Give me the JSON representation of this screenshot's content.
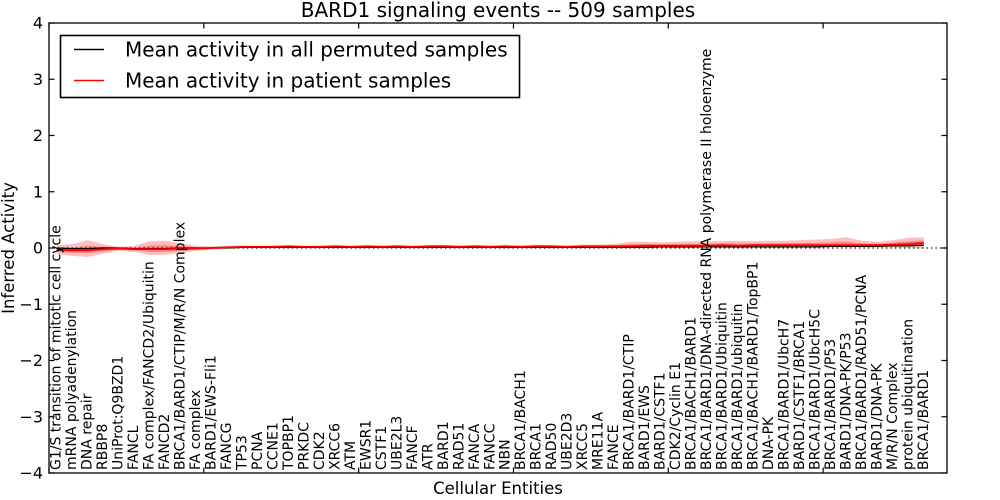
{
  "figure": {
    "title": "BARD1 signaling events -- 509 samples",
    "xlabel": "Cellular Entities",
    "ylabel": "Inferred Activity"
  },
  "legend": {
    "items": [
      {
        "label": "Mean activity in all permuted samples",
        "color": "#000000"
      },
      {
        "label": "Mean activity in patient samples",
        "color": "#ff0000"
      }
    ]
  },
  "chart_data": {
    "type": "line",
    "title": "BARD1 signaling events -- 509 samples",
    "xlabel": "Cellular Entities",
    "ylabel": "Inferred Activity",
    "ylim": [
      -4,
      4
    ],
    "yticks": [
      -4,
      -3,
      -2,
      -1,
      0,
      1,
      2,
      3,
      4
    ],
    "xlim": [
      0,
      58
    ],
    "x_major_tick_units": [
      0,
      10,
      20,
      30,
      40,
      50
    ],
    "grid": false,
    "legend_position": "upper left",
    "zero_line": {
      "y": 0,
      "style": "dotted",
      "color": "#000000"
    },
    "band_color": "#ff0000",
    "band_opacity": 0.25,
    "categories": [
      "G1/S transition of mitotic cell cycle",
      "mRNA polyadenylation",
      "DNA repair",
      "RBBP8",
      "UniProt:Q9BZD1",
      "FANCL",
      "FA complex/FANCD2/Ubiquitin",
      "FANCD2",
      "BRCA1/BARD1/CTIP/M/R/N Complex",
      "FA complex",
      "BARD1/EWS-Fli1",
      "FANCG",
      "TP53",
      "PCNA",
      "CCNE1",
      "TOPBP1",
      "PRKDC",
      "CDK2",
      "XRCC6",
      "ATM",
      "EWSR1",
      "CSTF1",
      "UBE2L3",
      "FANCF",
      "ATR",
      "BARD1",
      "RAD51",
      "FANCA",
      "FANCC",
      "NBN",
      "BRCA1/BACH1",
      "BRCA1",
      "RAD50",
      "UBE2D3",
      "XRCC5",
      "MRE11A",
      "FANCE",
      "BRCA1/BARD1/CTIP",
      "BARD1/EWS",
      "BARD1/CSTF1",
      "CDK2/Cyclin E1",
      "BRCA1/BACH1/BARD1",
      "BRCA1/BARD1/DNA-directed RNA polymerase II holoenzyme",
      "BRCA1/BARD1/Ubiquitin",
      "BRCA1/BARD1/ubiquitin",
      "BRCA1/BACH1/BARD1/TopBP1",
      "DNA-PK",
      "BRCA1/BARD1/UbcH7",
      "BARD1/CSTF1/BRCA1",
      "BRCA1/BARD1/UbcH5C",
      "BRCA1/BARD1/P53",
      "BARD1/DNA-PK/P53",
      "BRCA1/BARD1/RAD51/PCNA",
      "BARD1/DNA-PK",
      "M/R/N Complex",
      "protein ubiquitination",
      "BRCA1/BARD1"
    ],
    "series": [
      {
        "name": "Mean activity in all permuted samples",
        "type": "line",
        "color": "#000000",
        "values": [
          0,
          -0.01,
          -0.01,
          0,
          0,
          -0.01,
          -0.01,
          -0.01,
          0,
          0,
          0,
          0,
          0.01,
          0.01,
          0.01,
          0.01,
          0.01,
          0.01,
          0.01,
          0.01,
          0.01,
          0.01,
          0.01,
          0.01,
          0.01,
          0.01,
          0.01,
          0.01,
          0.01,
          0.01,
          0.01,
          0.01,
          0.01,
          0.01,
          0.01,
          0.01,
          0.01,
          0.01,
          0.01,
          0.02,
          0.02,
          0.02,
          0.02,
          0.02,
          0.02,
          0.02,
          0.02,
          0.02,
          0.02,
          0.02,
          0.03,
          0.03,
          0.03,
          0.03,
          0.04,
          0.04,
          0.05
        ]
      },
      {
        "name": "Mean activity in patient samples",
        "type": "line",
        "color": "#ff0000",
        "values": [
          -0.03,
          -0.04,
          -0.04,
          -0.02,
          -0.01,
          -0.02,
          -0.02,
          -0.02,
          -0.01,
          -0.01,
          0,
          0.01,
          0.02,
          0.02,
          0.02,
          0.03,
          0.02,
          0.02,
          0.03,
          0.02,
          0.03,
          0.02,
          0.03,
          0.02,
          0.03,
          0.03,
          0.02,
          0.03,
          0.02,
          0.03,
          0.02,
          0.03,
          0.03,
          0.02,
          0.03,
          0.03,
          0.03,
          0.03,
          0.04,
          0.04,
          0.04,
          0.04,
          0.04,
          0.05,
          0.04,
          0.05,
          0.05,
          0.05,
          0.05,
          0.05,
          0.05,
          0.05,
          0.05,
          0.05,
          0.06,
          0.07,
          0.09
        ]
      },
      {
        "name": "Patient band upper",
        "type": "band-upper",
        "color": "#ff0000",
        "values": [
          0.05,
          0.07,
          0.14,
          0.07,
          0.02,
          0.04,
          0.12,
          0.13,
          0.08,
          0.04,
          0.03,
          0.04,
          0.05,
          0.04,
          0.05,
          0.05,
          0.04,
          0.05,
          0.05,
          0.04,
          0.05,
          0.05,
          0.05,
          0.04,
          0.05,
          0.06,
          0.05,
          0.05,
          0.05,
          0.05,
          0.05,
          0.06,
          0.05,
          0.05,
          0.06,
          0.06,
          0.07,
          0.11,
          0.11,
          0.1,
          0.11,
          0.12,
          0.12,
          0.12,
          0.13,
          0.12,
          0.13,
          0.13,
          0.14,
          0.15,
          0.16,
          0.19,
          0.13,
          0.11,
          0.14,
          0.18,
          0.19
        ]
      },
      {
        "name": "Patient band lower",
        "type": "band-lower",
        "color": "#ff0000",
        "values": [
          -0.11,
          -0.14,
          -0.16,
          -0.1,
          -0.05,
          -0.07,
          -0.13,
          -0.12,
          -0.09,
          -0.05,
          -0.03,
          -0.01,
          0,
          0,
          0,
          0,
          0,
          0,
          0.01,
          0,
          0.01,
          0,
          0.01,
          0,
          0.01,
          0.01,
          0,
          0.01,
          0,
          0.01,
          0,
          0.01,
          0.01,
          0,
          0.01,
          0,
          0,
          0,
          0,
          0.01,
          0,
          0,
          0.01,
          0.01,
          0,
          0.01,
          0.01,
          0.01,
          0.01,
          0.01,
          0.01,
          0.01,
          0.01,
          0.01,
          0.01,
          0,
          -0.01
        ]
      }
    ]
  }
}
